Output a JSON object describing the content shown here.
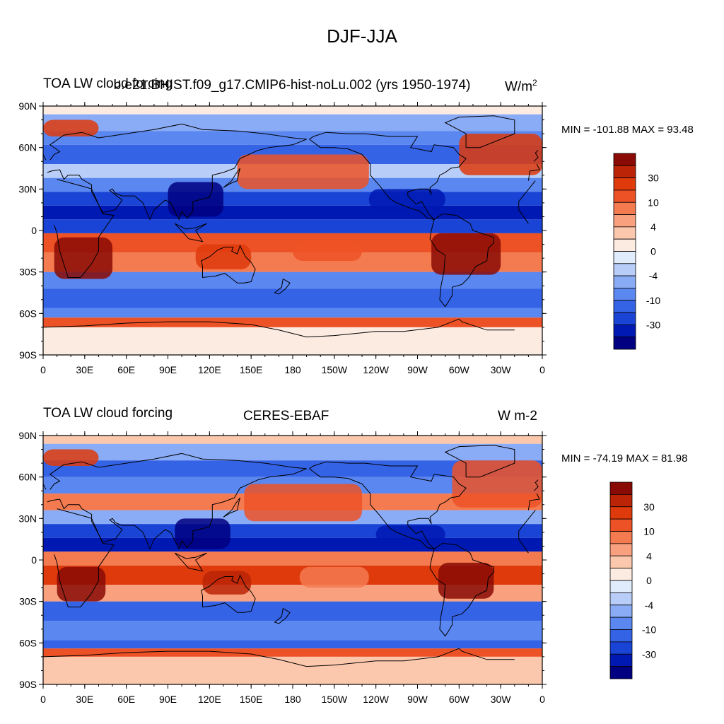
{
  "figure": {
    "title": "DJF-JJA",
    "colors": {
      "levels": [
        "#000080",
        "#0019b3",
        "#1a44d6",
        "#3563e6",
        "#5b87f0",
        "#8aabf5",
        "#b8cdf8",
        "#e0ebfb",
        "#fcebe0",
        "#fcc8ad",
        "#f9a17f",
        "#f47a50",
        "#ed5226",
        "#de3a0c",
        "#bb2407",
        "#8a0b05"
      ],
      "land_outline": "#000000"
    }
  },
  "panels": [
    {
      "id": "model",
      "left_title": "TOA LW cloud forcing",
      "center_title": "b.e21.BHIST.f09_g17.CMIP6-hist-noLu.002 (yrs 1950-1974)",
      "units": "W/m",
      "units_superscript": "2",
      "min_label": "MIN =",
      "min_value": "-101.88",
      "max_label": "MAX =",
      "max_value": "93.48"
    },
    {
      "id": "obs",
      "left_title": "TOA LW cloud forcing",
      "center_title": "CERES-EBAF",
      "units": "W m-2",
      "units_superscript": "",
      "min_label": "MIN =",
      "min_value": "-74.19",
      "max_label": "MAX =",
      "max_value": "81.98"
    }
  ],
  "axes": {
    "lat_ticks": [
      "90N",
      "60N",
      "30N",
      "0",
      "30S",
      "60S",
      "90S"
    ],
    "lon_ticks": [
      "0",
      "30E",
      "60E",
      "90E",
      "120E",
      "150E",
      "180",
      "150W",
      "120W",
      "90W",
      "60W",
      "30W",
      "0"
    ]
  },
  "colorbar": {
    "labels": [
      "30",
      "10",
      "4",
      "0",
      "-4",
      "-10",
      "-30"
    ]
  }
}
